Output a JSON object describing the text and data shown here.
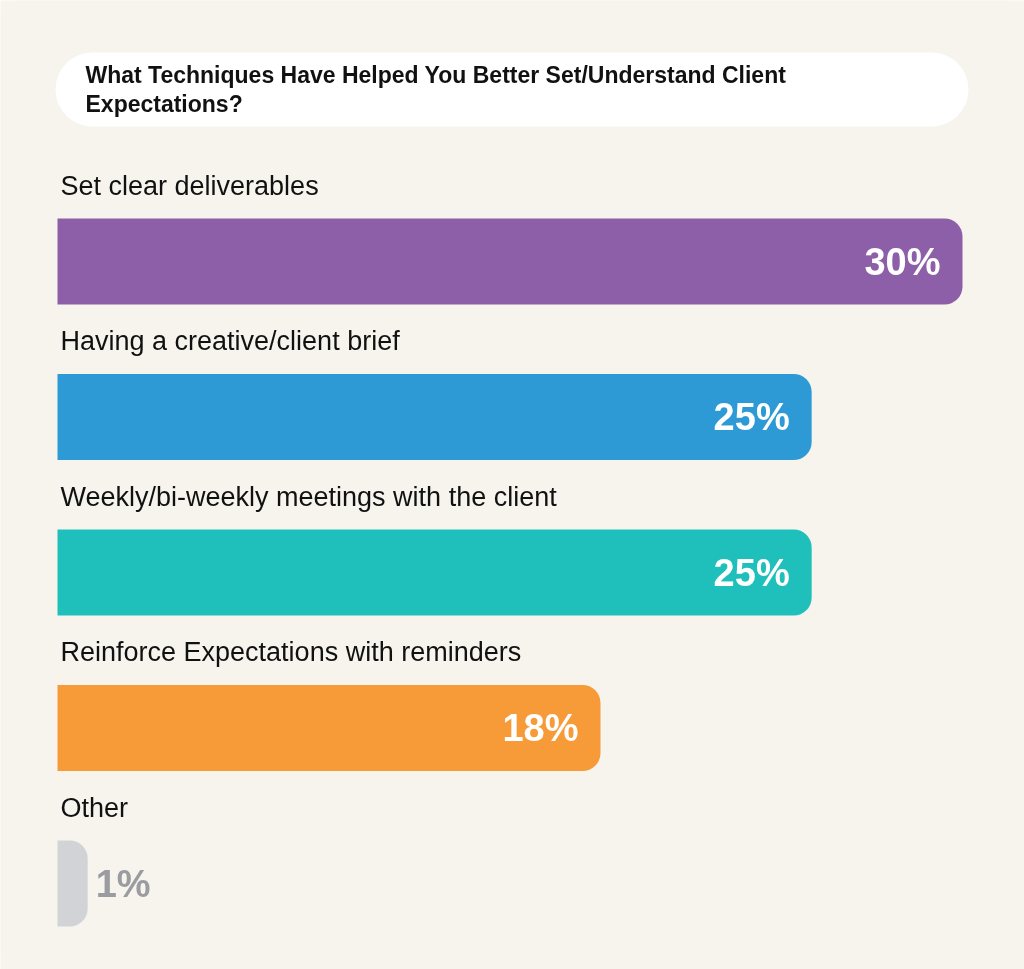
{
  "chart_data": {
    "type": "bar",
    "orientation": "horizontal",
    "title": "What Techniques Have Helped You Better Set/Understand Client Expectations?",
    "categories": [
      "Set clear deliverables",
      "Having a creative/client brief",
      "Weekly/bi-weekly meetings with the client",
      "Reinforce Expectations with reminders",
      "Other"
    ],
    "values": [
      30,
      25,
      25,
      18,
      1
    ],
    "colors": [
      "#8c5fa8",
      "#2d9ad6",
      "#1fbfbb",
      "#f79b38",
      "#d1d3d6"
    ],
    "value_labels": [
      "30%",
      "25%",
      "25%",
      "18%",
      "1%"
    ]
  }
}
